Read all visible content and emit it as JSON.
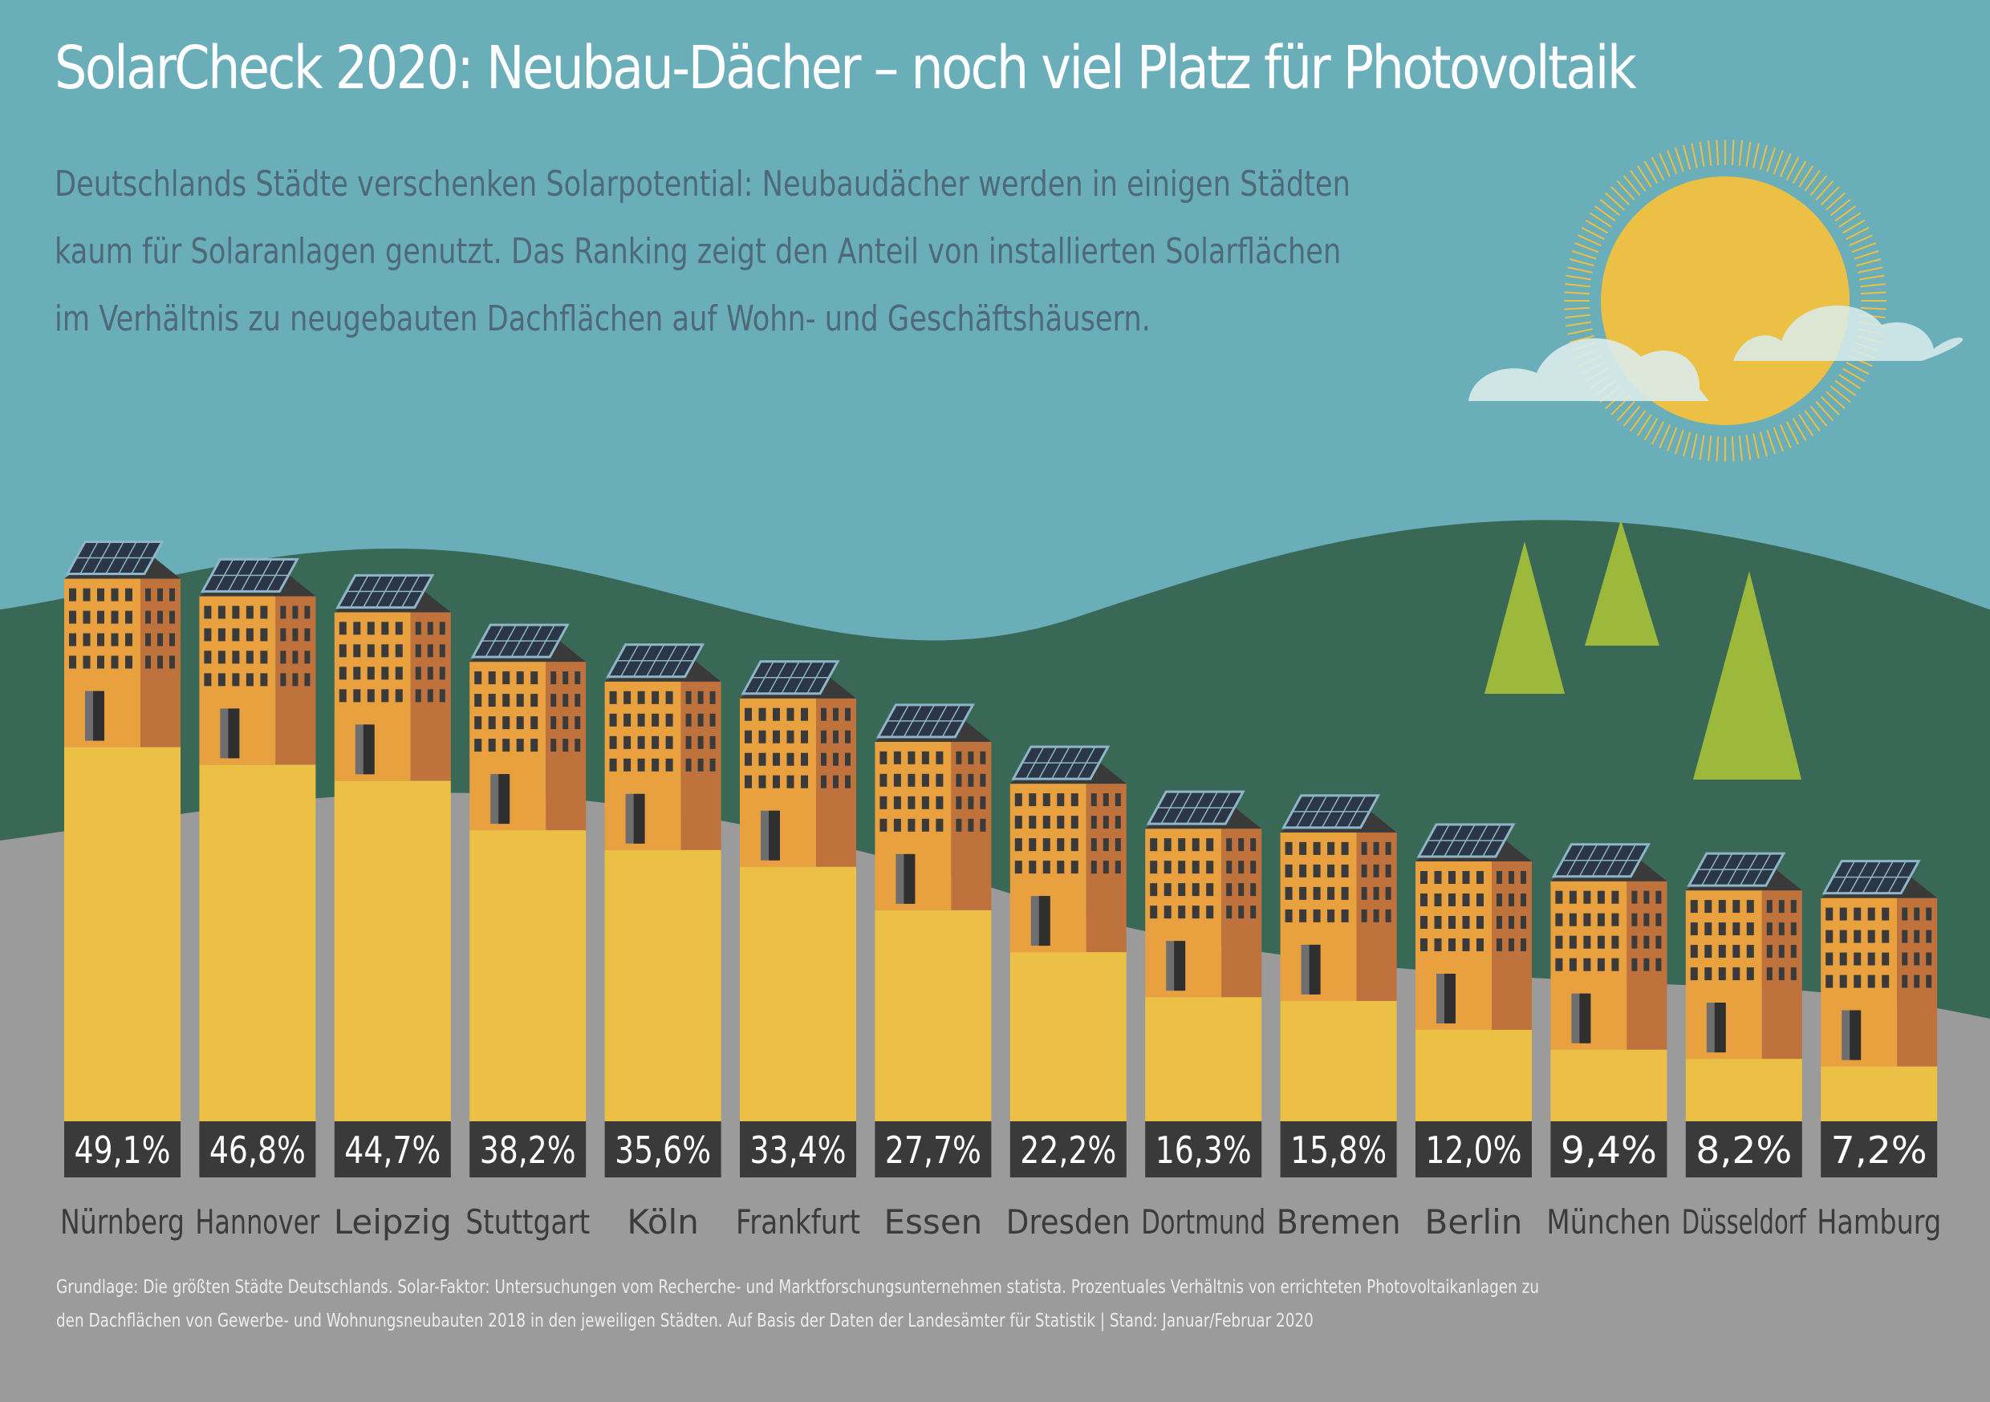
{
  "title": "SolarCheck 2020: Neubau-Dächer – noch viel Platz für Photovoltaik",
  "intro": [
    "Deutschlands Städte verschenken Solarpotential: Neubaudächer werden in einigen Städten",
    "kaum für Solaranlagen genutzt. Das Ranking zeigt den Anteil von installierten Solarflächen",
    "im Verhältnis zu neugebauten Dachflächen auf Wohn- und Geschäftshäusern."
  ],
  "footnote": [
    "Grundlage: Die größten Städte Deutschlands. Solar-Faktor: Untersuchungen vom Recherche- und Marktforschungsunternehmen statista. Prozentuales Verhältnis von errichteten Photovoltaikanlagen zu",
    "den Dachflächen von Gewerbe- und Wohnungsneubauten 2018 in den jeweiligen Städten. Auf Basis der Daten der Landesämter für Statistik | Stand: Januar/Februar 2020"
  ],
  "chart_data": {
    "type": "bar",
    "categories": [
      "Nürnberg",
      "Hannover",
      "Leipzig",
      "Stuttgart",
      "Köln",
      "Frankfurt",
      "Essen",
      "Dresden",
      "Dortmund",
      "Bremen",
      "Berlin",
      "München",
      "Düsseldorf",
      "Hamburg"
    ],
    "values": [
      49.1,
      46.8,
      44.7,
      38.2,
      35.6,
      33.4,
      27.7,
      22.2,
      16.3,
      15.8,
      12.0,
      9.4,
      8.2,
      7.2
    ],
    "labels": [
      "49,1",
      "46,8",
      "44,7",
      "38,2",
      "35,6",
      "33,4",
      "27,7",
      "22,2",
      "16,3",
      "15,8",
      "12,0",
      "9,4",
      "8,2",
      "7,2"
    ],
    "unit": "%",
    "title": "",
    "xlabel": "",
    "ylabel": "",
    "ylim": [
      0,
      50
    ],
    "grid": false,
    "legend": "none"
  },
  "colors": {
    "sky": "#6aaeba",
    "hill": "#3a6857",
    "ground": "#9b9b9b",
    "bar": "#ecbf45",
    "building_front": "#e8a13e",
    "building_side": "#c0723d",
    "roof": "#3b3a3a",
    "solar_panel": "#2b3646",
    "label_box": "#3a3a3a",
    "sun": "#ecbf45",
    "cloud": "#dbeceb",
    "tree": "#9cb93c",
    "title_text": "#ffffff",
    "intro_text": "#4e6a78",
    "city_text": "#3b3b3b"
  },
  "icons": [
    "sun-icon",
    "cloud-icon",
    "tree-icon",
    "building-icon",
    "solar-panel-icon"
  ]
}
